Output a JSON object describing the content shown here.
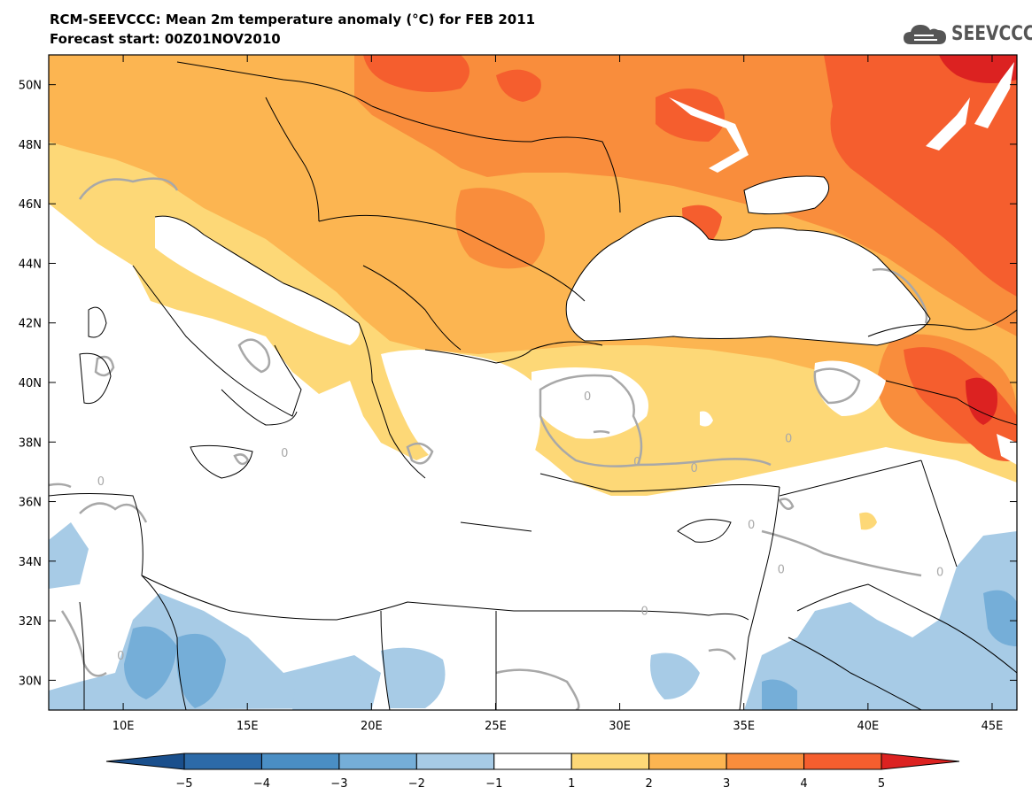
{
  "header": {
    "title_line1": "RCM-SEEVCCC: Mean 2m temperature anomaly (°C) for FEB 2011",
    "title_line2": "Forecast start: 00Z01NOV2010"
  },
  "logo": {
    "text": "SEEVCCC",
    "icon": "cloud-icon"
  },
  "map": {
    "lon_range": [
      7,
      46
    ],
    "lat_range": [
      29,
      51
    ],
    "lon_ticks": [
      "10E",
      "15E",
      "20E",
      "25E",
      "30E",
      "35E",
      "40E",
      "45E"
    ],
    "lat_ticks": [
      "50N",
      "48N",
      "46N",
      "44N",
      "42N",
      "40N",
      "38N",
      "36N",
      "34N",
      "32N",
      "30N"
    ],
    "contour_label": "0"
  },
  "colorbar": {
    "labels": [
      "−5",
      "−4",
      "−3",
      "−2",
      "−1",
      "1",
      "2",
      "3",
      "4",
      "5"
    ],
    "colors": [
      "#1a4f8c",
      "#2c6aa8",
      "#4a8ec4",
      "#75aed8",
      "#a7cbe6",
      "#ffffff",
      "#fdd877",
      "#fcb551",
      "#f98d3c",
      "#f55e2e",
      "#dc2221"
    ]
  }
}
